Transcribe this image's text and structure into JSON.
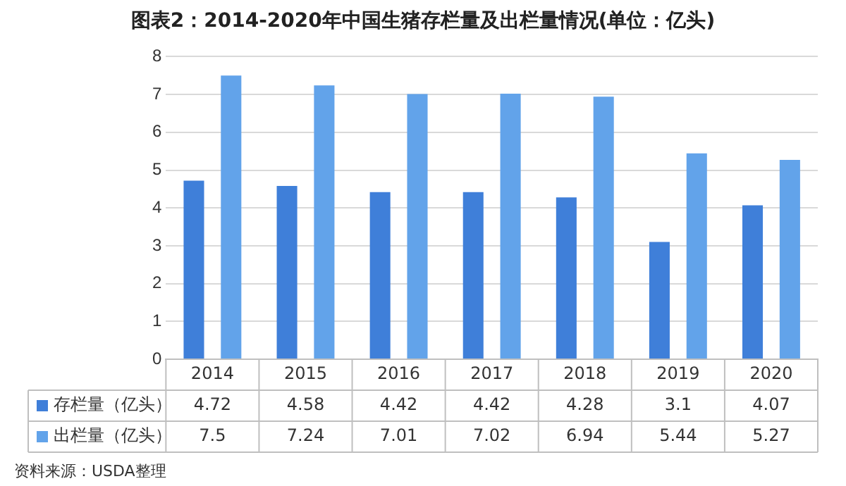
{
  "chart_data": {
    "type": "bar",
    "title": "图表2：2014-2020年中国生猪存栏量及出栏量情况(单位：亿头)",
    "categories": [
      "2014",
      "2015",
      "2016",
      "2017",
      "2018",
      "2019",
      "2020"
    ],
    "series": [
      {
        "name": "存栏量（亿头）",
        "color": "#3f7fd9",
        "values": [
          4.72,
          4.58,
          4.42,
          4.42,
          4.28,
          3.1,
          4.07
        ]
      },
      {
        "name": "出栏量（亿头）",
        "color": "#62a3ea",
        "values": [
          7.5,
          7.24,
          7.01,
          7.02,
          6.94,
          5.44,
          5.27
        ]
      }
    ],
    "ylim": [
      0,
      8
    ],
    "yticks": [
      0,
      1,
      2,
      3,
      4,
      5,
      6,
      7,
      8
    ],
    "grid": "y",
    "legend": "bottom",
    "data_labels": true,
    "annotations": [
      "资料来源：USDA整理"
    ]
  }
}
